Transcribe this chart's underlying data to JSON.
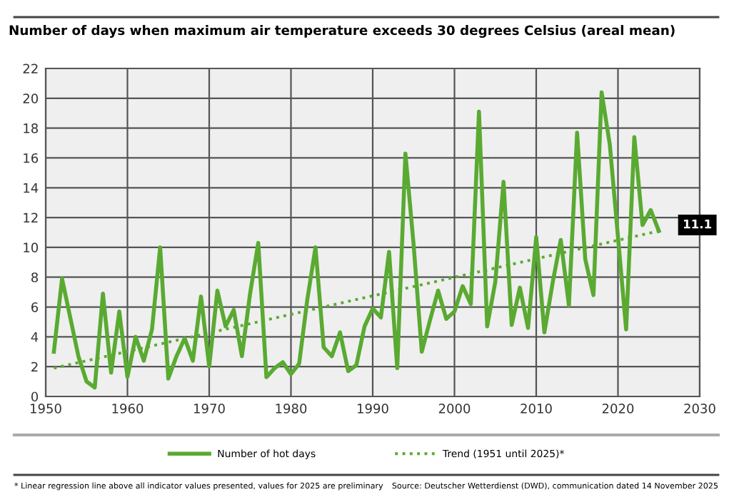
{
  "chart_data": {
    "type": "line",
    "title": "Number of days when maximum air temperature exceeds 30 degrees Celsius (areal mean)",
    "x": [
      1951,
      1952,
      1953,
      1954,
      1955,
      1956,
      1957,
      1958,
      1959,
      1960,
      1961,
      1962,
      1963,
      1964,
      1965,
      1966,
      1967,
      1968,
      1969,
      1970,
      1971,
      1972,
      1973,
      1974,
      1975,
      1976,
      1977,
      1978,
      1979,
      1980,
      1981,
      1982,
      1983,
      1984,
      1985,
      1986,
      1987,
      1988,
      1989,
      1990,
      1991,
      1992,
      1993,
      1994,
      1995,
      1996,
      1997,
      1998,
      1999,
      2000,
      2001,
      2002,
      2003,
      2004,
      2005,
      2006,
      2007,
      2008,
      2009,
      2010,
      2011,
      2012,
      2013,
      2014,
      2015,
      2016,
      2017,
      2018,
      2019,
      2020,
      2021,
      2022,
      2023,
      2024,
      2025
    ],
    "series": [
      {
        "name": "Number of hot days",
        "color": "#5aaa32",
        "line_style": "solid",
        "values": [
          3.0,
          7.9,
          5.3,
          2.7,
          1.0,
          0.6,
          6.9,
          1.6,
          5.7,
          1.3,
          4.0,
          2.4,
          4.5,
          10.0,
          1.2,
          2.7,
          3.9,
          2.4,
          6.7,
          2.0,
          7.1,
          4.7,
          5.8,
          2.7,
          6.9,
          10.3,
          1.3,
          1.9,
          2.3,
          1.5,
          2.2,
          6.5,
          10.0,
          3.3,
          2.7,
          4.3,
          1.7,
          2.1,
          4.7,
          5.9,
          5.3,
          9.7,
          1.9,
          16.3,
          10.2,
          3.0,
          5.1,
          7.1,
          5.2,
          5.7,
          7.4,
          6.2,
          19.1,
          4.7,
          7.7,
          14.4,
          4.8,
          7.3,
          4.6,
          10.7,
          4.3,
          7.6,
          10.5,
          6.1,
          17.7,
          9.2,
          6.8,
          20.4,
          16.9,
          10.7,
          4.5,
          17.4,
          11.5,
          12.5,
          11.1
        ]
      },
      {
        "name": "Trend (1951 until 2025)*",
        "color": "#5aaa32",
        "line_style": "dotted",
        "x": [
          1951,
          2025
        ],
        "values": [
          1.9,
          11.1
        ]
      }
    ],
    "xlim": [
      1950,
      2030
    ],
    "xticks": [
      1950,
      1960,
      1970,
      1980,
      1990,
      2000,
      2010,
      2020,
      2030
    ],
    "ylim": [
      0,
      22
    ],
    "yticks": [
      0,
      2,
      4,
      6,
      8,
      10,
      12,
      14,
      16,
      18,
      20,
      22
    ],
    "grid": true,
    "legend": "bottom",
    "annotations": [
      {
        "text": "11.1",
        "x": 2025,
        "y": 11.1
      },
      "* Linear regression line above all indicator values presented, values for 2025 are preliminary",
      "Source: Deutscher Wetterdienst (DWD), communication dated 14 November 2025"
    ]
  }
}
